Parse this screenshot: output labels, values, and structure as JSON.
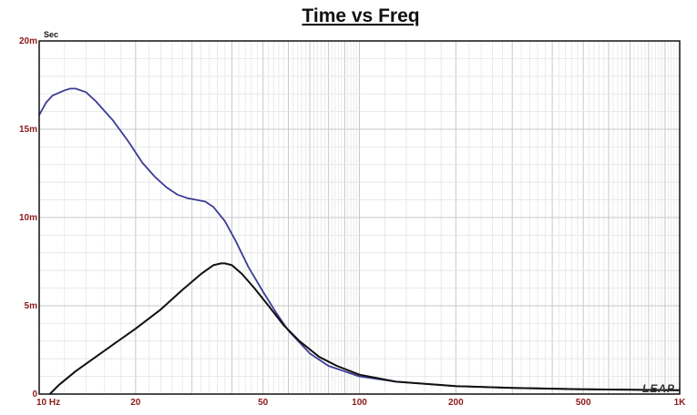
{
  "chart_data": {
    "type": "line",
    "title": "Time vs Freq",
    "y_unit": "Sec",
    "x_scale": "log",
    "xlim": [
      10,
      1000
    ],
    "ylim": [
      0,
      0.02
    ],
    "x_ticks": [
      {
        "value": 10,
        "label": "10 Hz"
      },
      {
        "value": 20,
        "label": "20"
      },
      {
        "value": 50,
        "label": "50"
      },
      {
        "value": 100,
        "label": "100"
      },
      {
        "value": 200,
        "label": "200"
      },
      {
        "value": 500,
        "label": "500"
      },
      {
        "value": 1000,
        "label": "1K"
      }
    ],
    "y_ticks": [
      {
        "value": 0,
        "label": "0"
      },
      {
        "value": 0.005,
        "label": "5m"
      },
      {
        "value": 0.01,
        "label": "10m"
      },
      {
        "value": 0.015,
        "label": "15m"
      },
      {
        "value": 0.02,
        "label": "20m"
      }
    ],
    "grid": true,
    "watermark": "LEAP",
    "series": [
      {
        "color": "#3c3c96",
        "points": [
          [
            10,
            0.0158
          ],
          [
            10.5,
            0.0165
          ],
          [
            11,
            0.0169
          ],
          [
            12,
            0.0172
          ],
          [
            12.5,
            0.0173
          ],
          [
            13,
            0.0173
          ],
          [
            14,
            0.0171
          ],
          [
            15,
            0.0166
          ],
          [
            17,
            0.0155
          ],
          [
            19,
            0.0143
          ],
          [
            21,
            0.0131
          ],
          [
            23,
            0.0123
          ],
          [
            25,
            0.0117
          ],
          [
            27,
            0.0113
          ],
          [
            29,
            0.0111
          ],
          [
            31,
            0.011
          ],
          [
            33,
            0.0109
          ],
          [
            35,
            0.0106
          ],
          [
            38,
            0.0098
          ],
          [
            41,
            0.0087
          ],
          [
            45,
            0.0072
          ],
          [
            50,
            0.0058
          ],
          [
            55,
            0.0046
          ],
          [
            60,
            0.0036
          ],
          [
            70,
            0.0023
          ],
          [
            80,
            0.0016
          ],
          [
            100,
            0.001
          ],
          [
            130,
            0.0007
          ],
          [
            200,
            0.00045
          ],
          [
            300,
            0.00035
          ],
          [
            500,
            0.00028
          ],
          [
            700,
            0.00025
          ],
          [
            1000,
            0.00022
          ]
        ]
      },
      {
        "color": "#111111",
        "points": [
          [
            10.8,
            0.0
          ],
          [
            11.5,
            0.0005
          ],
          [
            13,
            0.0013
          ],
          [
            15,
            0.0021
          ],
          [
            17,
            0.0028
          ],
          [
            20,
            0.0037
          ],
          [
            24,
            0.0048
          ],
          [
            28,
            0.0059
          ],
          [
            32,
            0.0068
          ],
          [
            35,
            0.0073
          ],
          [
            37,
            0.0074
          ],
          [
            38,
            0.0074
          ],
          [
            40,
            0.0073
          ],
          [
            43,
            0.0068
          ],
          [
            47,
            0.006
          ],
          [
            52,
            0.005
          ],
          [
            58,
            0.0039
          ],
          [
            65,
            0.003
          ],
          [
            75,
            0.0021
          ],
          [
            85,
            0.0016
          ],
          [
            100,
            0.0011
          ],
          [
            130,
            0.0007
          ],
          [
            200,
            0.00045
          ],
          [
            300,
            0.00035
          ],
          [
            500,
            0.00027
          ],
          [
            700,
            0.00024
          ],
          [
            1000,
            0.00021
          ]
        ]
      }
    ]
  }
}
